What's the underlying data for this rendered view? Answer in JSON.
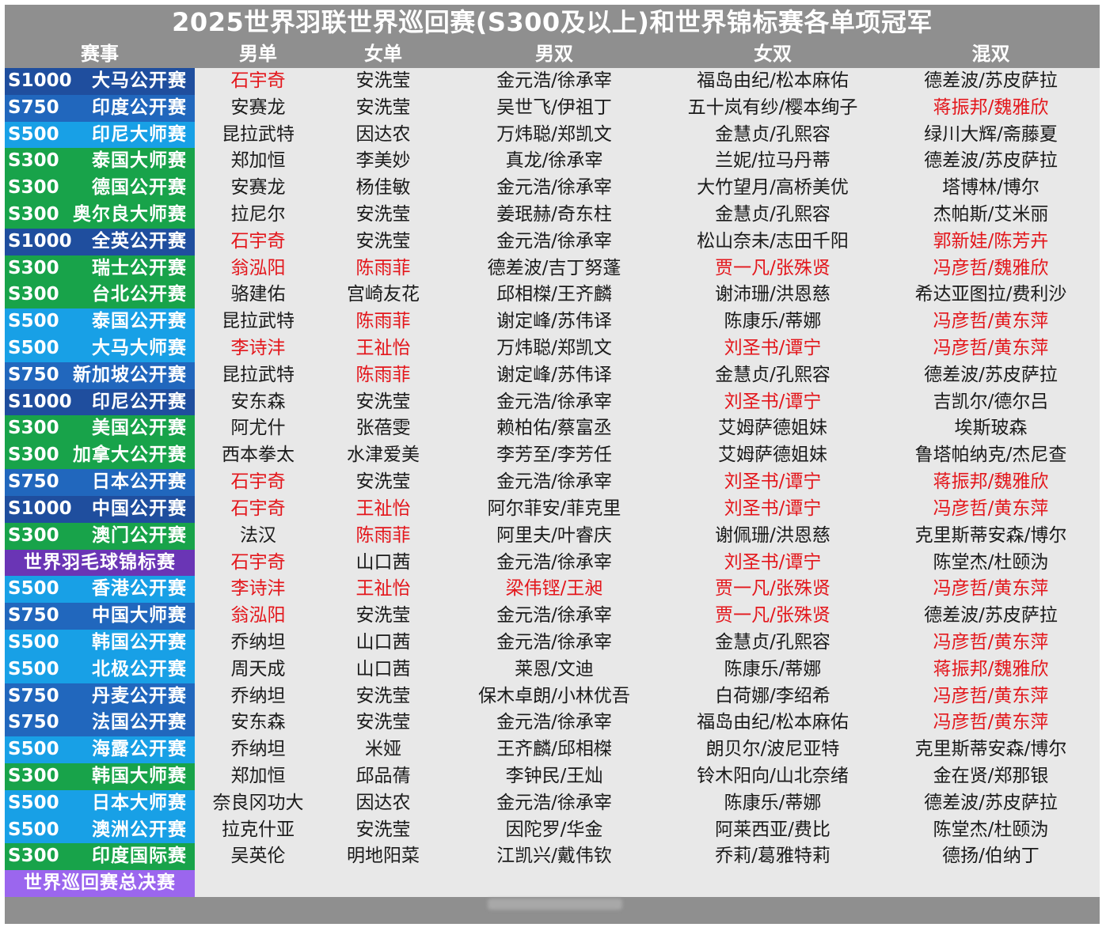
{
  "title": "2025世界羽联世界巡回赛(S300及以上)和世界锦标赛各单项冠军",
  "headers": [
    "赛事",
    "男单",
    "女单",
    "男双",
    "女双",
    "混双"
  ],
  "level_colors": {
    "S1000": "#1f4e9e",
    "S750": "#2167bd",
    "S500": "#18a0e6",
    "S300": "#18a34a",
    "WC": "#6a35b5",
    "WTF": "#9b66ee"
  },
  "red_color": "#e3161b",
  "rows": [
    {
      "level": "S1000",
      "event": "大马公开赛",
      "ms": "石宇奇",
      "ws": "安洗莹",
      "md": "金元浩/徐承宰",
      "wd": "福岛由纪/松本麻佑",
      "xd": "德差波/苏皮萨拉"
    },
    {
      "level": "S750",
      "event": "印度公开赛",
      "ms": "安赛龙",
      "ws": "安洗莹",
      "md": "吴世飞/伊祖丁",
      "wd": "五十岚有纱/樱本绚子",
      "xd": "蒋振邦/魏雅欣"
    },
    {
      "level": "S500",
      "event": "印尼大师赛",
      "ms": "昆拉武特",
      "ws": "因达农",
      "md": "万炜聪/郑凯文",
      "wd": "金慧贞/孔熙容",
      "xd": "绿川大辉/斋藤夏"
    },
    {
      "level": "S300",
      "event": "泰国大师赛",
      "ms": "郑加恒",
      "ws": "李美妙",
      "md": "真龙/徐承宰",
      "wd": "兰妮/拉马丹蒂",
      "xd": "德差波/苏皮萨拉"
    },
    {
      "level": "S300",
      "event": "德国公开赛",
      "ms": "安赛龙",
      "ws": "杨佳敏",
      "md": "金元浩/徐承宰",
      "wd": "大竹望月/高桥美优",
      "xd": "塔博林/博尔"
    },
    {
      "level": "S300",
      "event": "奥尔良大师赛",
      "ms": "拉尼尔",
      "ws": "安洗莹",
      "md": "姜珉赫/奇东柱",
      "wd": "金慧贞/孔熙容",
      "xd": "杰帕斯/艾米丽"
    },
    {
      "level": "S1000",
      "event": "全英公开赛",
      "ms": "石宇奇",
      "ws": "安洗莹",
      "md": "金元浩/徐承宰",
      "wd": "松山奈未/志田千阳",
      "xd": "郭新娃/陈芳卉"
    },
    {
      "level": "S300",
      "event": "瑞士公开赛",
      "ms": "翁泓阳",
      "ws": "陈雨菲",
      "md": "德差波/吉丁努蓬",
      "wd": "贾一凡/张殊贤",
      "xd": "冯彦哲/魏雅欣"
    },
    {
      "level": "S300",
      "event": "台北公开赛",
      "ms": "骆建佑",
      "ws": "宫崎友花",
      "md": "邱相榤/王齐麟",
      "wd": "谢沛珊/洪恩慈",
      "xd": "希达亚图拉/费利沙"
    },
    {
      "level": "S500",
      "event": "泰国公开赛",
      "ms": "昆拉武特",
      "ws": "陈雨菲",
      "md": "谢定峰/苏伟译",
      "wd": "陈康乐/蒂娜",
      "xd": "冯彦哲/黄东萍"
    },
    {
      "level": "S500",
      "event": "大马大师赛",
      "ms": "李诗沣",
      "ws": "王祉怡",
      "md": "万炜聪/郑凯文",
      "wd": "刘圣书/谭宁",
      "xd": "冯彦哲/黄东萍"
    },
    {
      "level": "S750",
      "event": "新加坡公开赛",
      "ms": "昆拉武特",
      "ws": "陈雨菲",
      "md": "谢定峰/苏伟译",
      "wd": "金慧贞/孔熙容",
      "xd": "德差波/苏皮萨拉"
    },
    {
      "level": "S1000",
      "event": "印尼公开赛",
      "ms": "安东森",
      "ws": "安洗莹",
      "md": "金元浩/徐承宰",
      "wd": "刘圣书/谭宁",
      "xd": "吉凯尔/德尔吕"
    },
    {
      "level": "S300",
      "event": "美国公开赛",
      "ms": "阿尤什",
      "ws": "张蓓雯",
      "md": "赖柏佑/蔡富丞",
      "wd": "艾姆萨德姐妹",
      "xd": "埃斯玻森"
    },
    {
      "level": "S300",
      "event": "加拿大公开赛",
      "ms": "西本拳太",
      "ws": "水津爱美",
      "md": "李芳至/李芳任",
      "wd": "艾姆萨德姐妹",
      "xd": "鲁塔帕纳克/杰尼查"
    },
    {
      "level": "S750",
      "event": "日本公开赛",
      "ms": "石宇奇",
      "ws": "安洗莹",
      "md": "金元浩/徐承宰",
      "wd": "刘圣书/谭宁",
      "xd": "蒋振邦/魏雅欣"
    },
    {
      "level": "S1000",
      "event": "中国公开赛",
      "ms": "石宇奇",
      "ws": "王祉怡",
      "md": "阿尔菲安/菲克里",
      "wd": "刘圣书/谭宁",
      "xd": "冯彦哲/黄东萍"
    },
    {
      "level": "S300",
      "event": "澳门公开赛",
      "ms": "法汉",
      "ws": "陈雨菲",
      "md": "阿里夫/叶睿庆",
      "wd": "谢佩珊/洪恩慈",
      "xd": "克里斯蒂安森/博尔"
    },
    {
      "level": "WC",
      "event": "世界羽毛球锦标赛",
      "ms": "石宇奇",
      "ws": "山口茜",
      "md": "金元浩/徐承宰",
      "wd": "刘圣书/谭宁",
      "xd": "陈堂杰/杜颐沩"
    },
    {
      "level": "S500",
      "event": "香港公开赛",
      "ms": "李诗沣",
      "ws": "王祉怡",
      "md": "梁伟铿/王昶",
      "wd": "贾一凡/张殊贤",
      "xd": "冯彦哲/黄东萍"
    },
    {
      "level": "S750",
      "event": "中国大师赛",
      "ms": "翁泓阳",
      "ws": "安洗莹",
      "md": "金元浩/徐承宰",
      "wd": "贾一凡/张殊贤",
      "xd": "德差波/苏皮萨拉"
    },
    {
      "level": "S500",
      "event": "韩国公开赛",
      "ms": "乔纳坦",
      "ws": "山口茜",
      "md": "金元浩/徐承宰",
      "wd": "金慧贞/孔熙容",
      "xd": "冯彦哲/黄东萍"
    },
    {
      "level": "S500",
      "event": "北极公开赛",
      "ms": "周天成",
      "ws": "山口茜",
      "md": "莱恩/文迪",
      "wd": "陈康乐/蒂娜",
      "xd": "蒋振邦/魏雅欣"
    },
    {
      "level": "S750",
      "event": "丹麦公开赛",
      "ms": "乔纳坦",
      "ws": "安洗莹",
      "md": "保木卓朗/小林优吾",
      "wd": "白荷娜/李绍希",
      "xd": "冯彦哲/黄东萍"
    },
    {
      "level": "S750",
      "event": "法国公开赛",
      "ms": "安东森",
      "ws": "安洗莹",
      "md": "金元浩/徐承宰",
      "wd": "福岛由纪/松本麻佑",
      "xd": "冯彦哲/黄东萍"
    },
    {
      "level": "S500",
      "event": "海露公开赛",
      "ms": "乔纳坦",
      "ws": "米娅",
      "md": "王齐麟/邱相榤",
      "wd": "朗贝尔/波尼亚特",
      "xd": "克里斯蒂安森/博尔"
    },
    {
      "level": "S300",
      "event": "韩国大师赛",
      "ms": "郑加恒",
      "ws": "邱品蒨",
      "md": "李钟民/王灿",
      "wd": "铃木阳向/山北奈绪",
      "xd": "金在贤/郑那银"
    },
    {
      "level": "S500",
      "event": "日本大师赛",
      "ms": "奈良冈功大",
      "ws": "因达农",
      "md": "金元浩/徐承宰",
      "wd": "陈康乐/蒂娜",
      "xd": "德差波/苏皮萨拉"
    },
    {
      "level": "S500",
      "event": "澳洲公开赛",
      "ms": "拉克什亚",
      "ws": "安洗莹",
      "md": "因陀罗/华金",
      "wd": "阿莱西亚/费比",
      "xd": "陈堂杰/杜颐沩"
    },
    {
      "level": "S300",
      "event": "印度国际赛",
      "ms": "吴英伦",
      "ws": "明地阳菜",
      "md": "江凯兴/戴伟钦",
      "wd": "乔莉/葛雅特莉",
      "xd": "德扬/伯纳丁"
    },
    {
      "level": "WTF",
      "event": "世界巡回赛总决赛",
      "ms": "",
      "ws": "",
      "md": "",
      "wd": "",
      "xd": ""
    }
  ],
  "highlighted_champions": [
    "石宇奇",
    "蒋振邦/魏雅欣",
    "郭新娃/陈芳卉",
    "翁泓阳",
    "陈雨菲",
    "贾一凡/张殊贤",
    "冯彦哲/魏雅欣",
    "冯彦哲/黄东萍",
    "李诗沣",
    "王祉怡",
    "刘圣书/谭宁",
    "梁伟铿/王昶"
  ]
}
